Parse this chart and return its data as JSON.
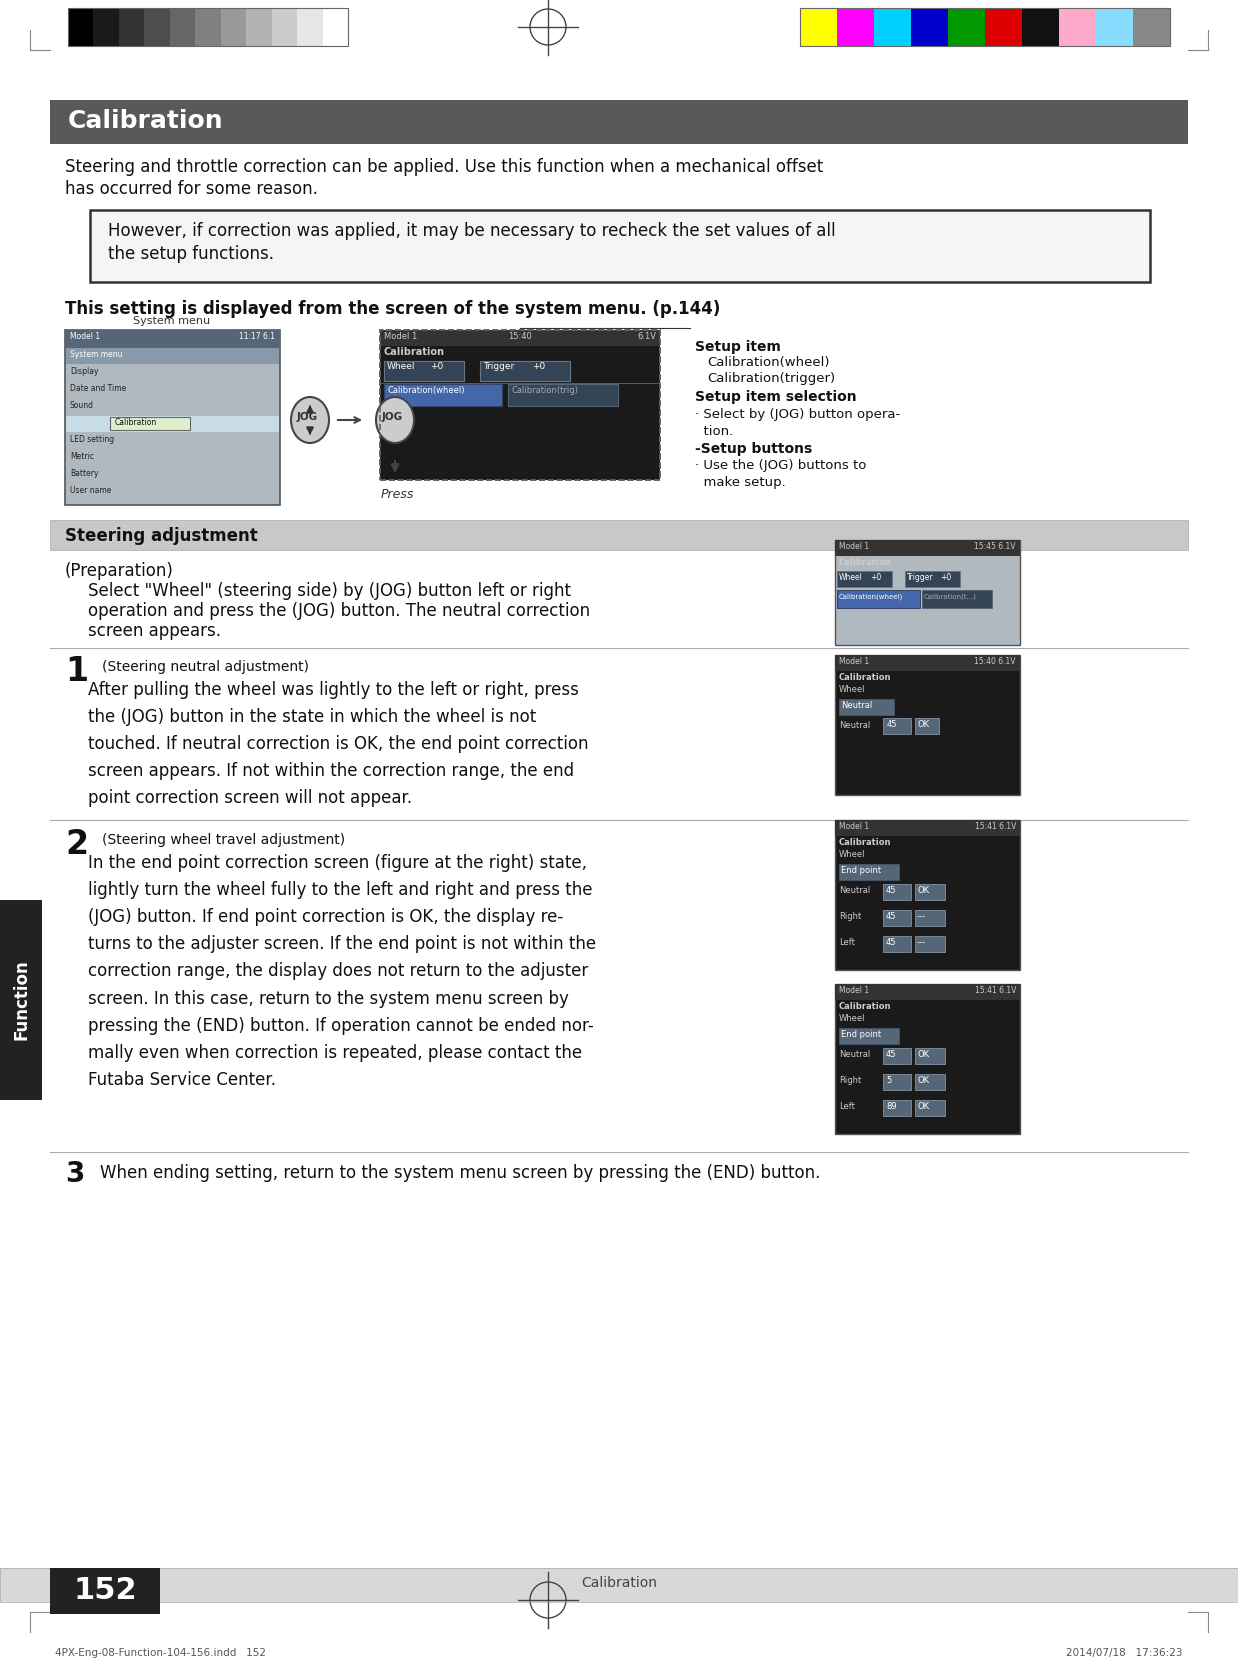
{
  "page_bg": "#ffffff",
  "top_bar_colors": [
    "#000000",
    "#1a1a1a",
    "#333333",
    "#4d4d4d",
    "#666666",
    "#808080",
    "#999999",
    "#b3b3b3",
    "#cccccc",
    "#e6e6e6",
    "#ffffff"
  ],
  "top_bar_colors_right": [
    "#ffff00",
    "#ff00ff",
    "#00cfff",
    "#0000cc",
    "#009900",
    "#dd0000",
    "#111111",
    "#ffaacc",
    "#88ddff",
    "#888888"
  ],
  "title_bg": "#595959",
  "title_text": "Calibration",
  "title_text_color": "#ffffff",
  "body_text_1a": "Steering and throttle correction can be applied. Use this function when a mechanical offset",
  "body_text_1b": "has occurred for some reason.",
  "note_box_text_a": "However, if correction was applied, it may be necessary to recheck the set values of all",
  "note_box_text_b": "the setup functions.",
  "this_setting_text": "This setting is displayed from the screen of the system menu. (p.144)",
  "setup_item_label": "Setup item",
  "setup_item_items": [
    "Calibration(wheel)",
    "Calibration(trigger)"
  ],
  "setup_item_selection_label": "Setup item selection",
  "setup_item_selection_text": "· Select by (JOG) button opera-\n  tion.",
  "setup_buttons_label": "-Setup buttons",
  "setup_buttons_text": "· Use the (JOG) buttons to\n  make setup.",
  "system_menu_label": "System menu",
  "steering_adj_header": "Steering adjustment",
  "prep_label": "(Preparation)",
  "prep_text_a": "Select \"Wheel\" (steering side) by (JOG) button left or right",
  "prep_text_b": "operation and press the (JOG) button. The neutral correction",
  "prep_text_c": "screen appears.",
  "step1_num": "1",
  "step1_label": "(Steering neutral adjustment)",
  "step1_text": "After pulling the wheel was lightly to the left or right, press\nthe (JOG) button in the state in which the wheel is not\ntouched. If neutral correction is OK, the end point correction\nscreen appears. If not within the correction range, the end\npoint correction screen will not appear.",
  "step2_num": "2",
  "step2_label": "(Steering wheel travel adjustment)",
  "step2_text": "In the end point correction screen (figure at the right) state,\nlightly turn the wheel fully to the left and right and press the\n(JOG) button. If end point correction is OK, the display re-\nturns to the adjuster screen. If the end point is not within the\ncorrection range, the display does not return to the adjuster\nscreen. In this case, return to the system menu screen by\npressing the (END) button. If operation cannot be ended nor-\nmally even when correction is repeated, please contact the\nFutaba Service Center.",
  "step3_num": "3",
  "step3_text": "When ending setting, return to the system menu screen by pressing the (END) button.",
  "bottom_bar_bg": "#d8d8d8",
  "bottom_bar_text": "Calibration",
  "page_num": "152",
  "page_num_bg": "#222222",
  "page_num_text_color": "#ffffff",
  "footer_left": "4PX-Eng-08-Function-104-156.indd   152",
  "footer_right": "2014/07/18   17:36:23",
  "left_tab_bg": "#222222",
  "left_tab_text": "Function",
  "screen_dark_bg": "#1a1a1a",
  "screen_header_bg": "#333333",
  "screen_sel_bg": "#444466",
  "screen_btn_bg": "#555566"
}
